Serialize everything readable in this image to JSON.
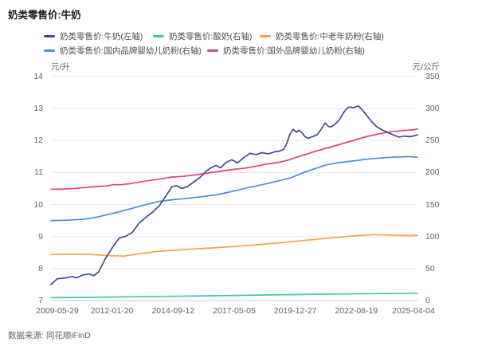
{
  "header": {
    "title": "奶类零售价:牛奶"
  },
  "footer": {
    "source": "数据来源: 同花顺iFinD"
  },
  "chart_data": {
    "type": "line",
    "title": "奶类零售价:牛奶",
    "grid": true,
    "legend_position": "top",
    "legend_rows": [
      [
        0,
        1,
        2
      ],
      [
        3,
        4
      ]
    ],
    "left_axis": {
      "unit": "元/升",
      "min": 7,
      "max": 14,
      "ticks": [
        "14",
        "13",
        "12",
        "11",
        "10",
        "9",
        "8",
        "7"
      ]
    },
    "right_axis": {
      "unit": "元/公斤",
      "min": 0,
      "max": 350,
      "ticks": [
        "350",
        "300",
        "250",
        "200",
        "150",
        "100",
        "50",
        "0"
      ]
    },
    "x_axis": {
      "labels": [
        "2009-05-29",
        "2012-01-20",
        "2014-09-12",
        "2017-05-05",
        "2019-12-27",
        "2022-08-19",
        "2025-04-04"
      ]
    },
    "series": [
      {
        "key": "milk",
        "name": "奶类零售价:牛奶(左轴)",
        "axis": "left",
        "color": "#3C4E8F",
        "points": [
          [
            0.0,
            7.5
          ],
          [
            0.017,
            7.68
          ],
          [
            0.035,
            7.7
          ],
          [
            0.057,
            7.75
          ],
          [
            0.07,
            7.71
          ],
          [
            0.087,
            7.8
          ],
          [
            0.104,
            7.83
          ],
          [
            0.117,
            7.78
          ],
          [
            0.13,
            7.9
          ],
          [
            0.148,
            8.3
          ],
          [
            0.167,
            8.65
          ],
          [
            0.187,
            8.96
          ],
          [
            0.204,
            9.01
          ],
          [
            0.222,
            9.13
          ],
          [
            0.241,
            9.43
          ],
          [
            0.259,
            9.6
          ],
          [
            0.276,
            9.75
          ],
          [
            0.296,
            9.97
          ],
          [
            0.313,
            10.26
          ],
          [
            0.33,
            10.56
          ],
          [
            0.343,
            10.59
          ],
          [
            0.357,
            10.5
          ],
          [
            0.372,
            10.56
          ],
          [
            0.389,
            10.7
          ],
          [
            0.407,
            10.85
          ],
          [
            0.424,
            11.05
          ],
          [
            0.437,
            11.15
          ],
          [
            0.45,
            11.22
          ],
          [
            0.463,
            11.15
          ],
          [
            0.478,
            11.32
          ],
          [
            0.493,
            11.4
          ],
          [
            0.509,
            11.3
          ],
          [
            0.526,
            11.47
          ],
          [
            0.543,
            11.6
          ],
          [
            0.559,
            11.56
          ],
          [
            0.576,
            11.62
          ],
          [
            0.593,
            11.58
          ],
          [
            0.611,
            11.65
          ],
          [
            0.624,
            11.67
          ],
          [
            0.635,
            11.73
          ],
          [
            0.643,
            11.9
          ],
          [
            0.652,
            12.2
          ],
          [
            0.661,
            12.35
          ],
          [
            0.67,
            12.26
          ],
          [
            0.676,
            12.32
          ],
          [
            0.685,
            12.25
          ],
          [
            0.693,
            12.12
          ],
          [
            0.702,
            12.07
          ],
          [
            0.713,
            12.12
          ],
          [
            0.726,
            12.18
          ],
          [
            0.737,
            12.35
          ],
          [
            0.748,
            12.55
          ],
          [
            0.757,
            12.44
          ],
          [
            0.765,
            12.43
          ],
          [
            0.776,
            12.52
          ],
          [
            0.787,
            12.65
          ],
          [
            0.798,
            12.87
          ],
          [
            0.809,
            13.02
          ],
          [
            0.817,
            13.05
          ],
          [
            0.824,
            13.02
          ],
          [
            0.833,
            13.06
          ],
          [
            0.839,
            13.08
          ],
          [
            0.85,
            12.95
          ],
          [
            0.863,
            12.76
          ],
          [
            0.876,
            12.58
          ],
          [
            0.889,
            12.43
          ],
          [
            0.904,
            12.33
          ],
          [
            0.92,
            12.25
          ],
          [
            0.935,
            12.17
          ],
          [
            0.95,
            12.11
          ],
          [
            0.965,
            12.14
          ],
          [
            0.98,
            12.12
          ],
          [
            0.991,
            12.15
          ],
          [
            1.0,
            12.18
          ]
        ]
      },
      {
        "key": "yogurt",
        "name": "奶类零售价:酸奶(右轴)",
        "axis": "right",
        "color": "#3FC6B4",
        "points": [
          [
            0.0,
            4.5
          ],
          [
            0.1,
            5.0
          ],
          [
            0.2,
            5.8
          ],
          [
            0.3,
            6.5
          ],
          [
            0.4,
            7.2
          ],
          [
            0.5,
            8.0
          ],
          [
            0.6,
            8.8
          ],
          [
            0.7,
            9.6
          ],
          [
            0.8,
            10.4
          ],
          [
            0.9,
            11.0
          ],
          [
            1.0,
            11.5
          ]
        ]
      },
      {
        "key": "middle-aged-powder",
        "name": "奶类零售价:中老年奶粉(右轴)",
        "axis": "right",
        "color": "#F5A14B",
        "points": [
          [
            0.0,
            72
          ],
          [
            0.06,
            72.5
          ],
          [
            0.11,
            72
          ],
          [
            0.165,
            70
          ],
          [
            0.2,
            69.5
          ],
          [
            0.24,
            73
          ],
          [
            0.285,
            76.5
          ],
          [
            0.33,
            78.5
          ],
          [
            0.37,
            80
          ],
          [
            0.415,
            81.5
          ],
          [
            0.46,
            83
          ],
          [
            0.5,
            84.5
          ],
          [
            0.545,
            86.5
          ],
          [
            0.59,
            88.5
          ],
          [
            0.63,
            90.5
          ],
          [
            0.675,
            93
          ],
          [
            0.72,
            95.5
          ],
          [
            0.765,
            98
          ],
          [
            0.805,
            100
          ],
          [
            0.85,
            102
          ],
          [
            0.88,
            103
          ],
          [
            0.915,
            102.5
          ],
          [
            0.95,
            102
          ],
          [
            0.975,
            101.5
          ],
          [
            1.0,
            102
          ]
        ]
      },
      {
        "key": "domestic-infant-formula",
        "name": "奶类零售价:国内品牌婴幼儿奶粉(右轴)",
        "axis": "right",
        "color": "#4A8FDC",
        "points": [
          [
            0.0,
            125
          ],
          [
            0.045,
            125.5
          ],
          [
            0.09,
            127
          ],
          [
            0.13,
            131
          ],
          [
            0.175,
            137
          ],
          [
            0.22,
            144
          ],
          [
            0.26,
            150
          ],
          [
            0.295,
            155
          ],
          [
            0.33,
            157.5
          ],
          [
            0.36,
            159
          ],
          [
            0.4,
            161.5
          ],
          [
            0.45,
            165
          ],
          [
            0.49,
            170
          ],
          [
            0.535,
            176
          ],
          [
            0.58,
            181.5
          ],
          [
            0.62,
            187
          ],
          [
            0.655,
            192
          ],
          [
            0.685,
            199
          ],
          [
            0.72,
            206
          ],
          [
            0.75,
            212
          ],
          [
            0.785,
            215.5
          ],
          [
            0.82,
            218
          ],
          [
            0.85,
            220
          ],
          [
            0.88,
            222
          ],
          [
            0.915,
            223.5
          ],
          [
            0.95,
            224.5
          ],
          [
            0.975,
            225
          ],
          [
            1.0,
            224
          ]
        ]
      },
      {
        "key": "foreign-infant-formula",
        "name": "奶类零售价:国外品牌婴幼儿奶粉(右轴)",
        "axis": "right",
        "color": "#E0417F",
        "points": [
          [
            0.0,
            174
          ],
          [
            0.03,
            174
          ],
          [
            0.06,
            175
          ],
          [
            0.09,
            176.5
          ],
          [
            0.12,
            178
          ],
          [
            0.15,
            179
          ],
          [
            0.17,
            181
          ],
          [
            0.19,
            181
          ],
          [
            0.22,
            183
          ],
          [
            0.25,
            186
          ],
          [
            0.28,
            188.5
          ],
          [
            0.31,
            191
          ],
          [
            0.33,
            193
          ],
          [
            0.36,
            194
          ],
          [
            0.39,
            196
          ],
          [
            0.42,
            198.5
          ],
          [
            0.45,
            201
          ],
          [
            0.48,
            203.5
          ],
          [
            0.5,
            205
          ],
          [
            0.53,
            207
          ],
          [
            0.56,
            210
          ],
          [
            0.585,
            213
          ],
          [
            0.61,
            215
          ],
          [
            0.63,
            217
          ],
          [
            0.65,
            220
          ],
          [
            0.67,
            224
          ],
          [
            0.7,
            229
          ],
          [
            0.72,
            233
          ],
          [
            0.745,
            237
          ],
          [
            0.77,
            241
          ],
          [
            0.8,
            246
          ],
          [
            0.83,
            251
          ],
          [
            0.86,
            256
          ],
          [
            0.89,
            260
          ],
          [
            0.92,
            263
          ],
          [
            0.95,
            265
          ],
          [
            0.97,
            266
          ],
          [
            0.985,
            266.5
          ],
          [
            1.0,
            268
          ]
        ]
      }
    ]
  }
}
